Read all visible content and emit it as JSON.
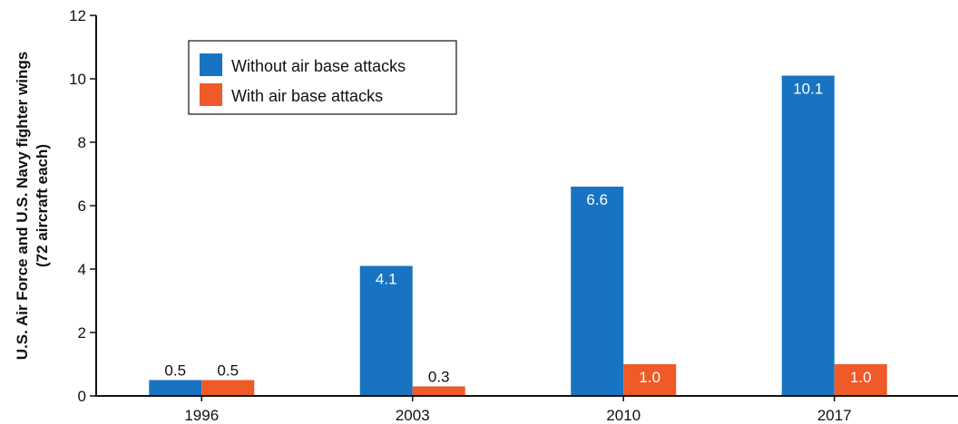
{
  "chart_data": {
    "type": "bar",
    "title": "",
    "xlabel": "",
    "ylabel_lines": [
      "U.S. Air Force and U.S. Navy fighter wings",
      "(72 aircraft each)"
    ],
    "categories": [
      "1996",
      "2003",
      "2010",
      "2017"
    ],
    "series": [
      {
        "name": "Without air base attacks",
        "color": "#1874c2",
        "values": [
          0.5,
          4.1,
          6.6,
          10.1
        ],
        "labels": [
          "0.5",
          "4.1",
          "6.6",
          "10.1"
        ]
      },
      {
        "name": "With air base attacks",
        "color": "#f05a28",
        "values": [
          0.5,
          0.3,
          1.0,
          1.0
        ],
        "labels": [
          "0.5",
          "0.3",
          "1.0",
          "1.0"
        ]
      }
    ],
    "ylim": [
      0,
      12
    ],
    "yticks": [
      "0",
      "2",
      "4",
      "6",
      "8",
      "10",
      "12"
    ],
    "legend_position": "top-left",
    "grid": false
  }
}
